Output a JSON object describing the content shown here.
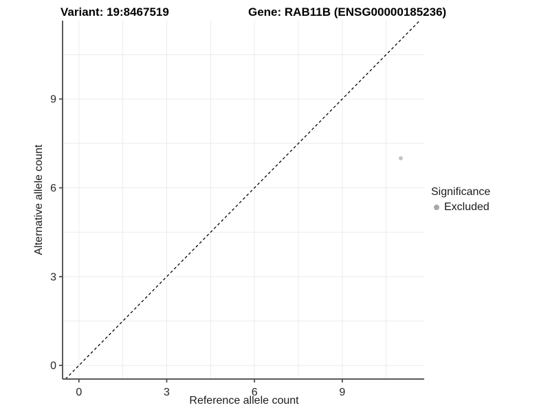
{
  "chart_data": {
    "type": "scatter",
    "title_variant": "Variant: 19:8467519",
    "title_gene": "Gene: RAB11B (ENSG00000185236)",
    "xlabel": "Reference allele count",
    "ylabel": "Alternative allele count",
    "xlim": [
      -0.56,
      11.8
    ],
    "ylim": [
      -0.46,
      11.65
    ],
    "x_ticks": [
      0,
      3,
      6,
      9
    ],
    "y_ticks": [
      0,
      3,
      6,
      9
    ],
    "minor_grid_step": 1.5,
    "grid": true,
    "grid_color": "#ebebeb",
    "axis_color": "#595959",
    "tick_color": "#4d4d4d",
    "tick_label_color": "#262626",
    "identity_line": {
      "type": "y=x",
      "style": "dashed",
      "color": "#000000"
    },
    "series": [
      {
        "name": "Excluded",
        "color": "#c4c4c4",
        "points": [
          {
            "x": 11,
            "y": 7
          }
        ]
      }
    ],
    "legend": {
      "title": "Significance",
      "position": "right",
      "items": [
        {
          "label": "Excluded",
          "color": "#a8a8a8"
        }
      ]
    }
  }
}
